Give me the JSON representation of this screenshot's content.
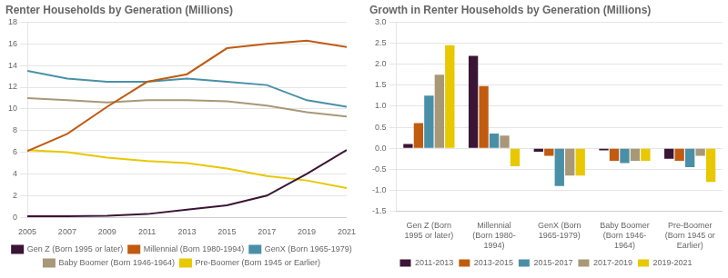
{
  "chart_data": [
    {
      "type": "line",
      "title": "Renter Households by Generation (Millions)",
      "x": [
        2005,
        2007,
        2009,
        2011,
        2013,
        2015,
        2017,
        2019,
        2021
      ],
      "series": [
        {
          "name": "Gen Z (Born 1995 or later)",
          "color": "#3b1535",
          "values": [
            0.1,
            0.1,
            0.15,
            0.3,
            0.7,
            1.1,
            2.0,
            4.0,
            6.2
          ]
        },
        {
          "name": "Millennial (Born 1980-1994)",
          "color": "#c05b10",
          "values": [
            6.1,
            7.7,
            10.2,
            12.5,
            13.2,
            15.6,
            16.0,
            16.3,
            15.7
          ]
        },
        {
          "name": "GenX (Born 1965-1979)",
          "color": "#4a8fa8",
          "values": [
            13.5,
            12.8,
            12.5,
            12.5,
            12.8,
            12.5,
            12.2,
            10.8,
            10.2
          ]
        },
        {
          "name": "Baby Boomer (Born 1946-1964)",
          "color": "#a89878",
          "values": [
            11.0,
            10.8,
            10.6,
            10.8,
            10.8,
            10.7,
            10.3,
            9.7,
            9.3
          ]
        },
        {
          "name": "Pre-Boomer (Born 1945 or Earlier)",
          "color": "#e8c800",
          "values": [
            6.2,
            6.0,
            5.5,
            5.2,
            5.0,
            4.5,
            3.8,
            3.4,
            2.7
          ]
        }
      ],
      "xlim": [
        2005,
        2021
      ],
      "xticks": [
        2005,
        2007,
        2009,
        2011,
        2013,
        2015,
        2017,
        2019,
        2021
      ],
      "ylim": [
        0,
        18
      ],
      "yticks": [
        0,
        2,
        4,
        6,
        8,
        10,
        12,
        14,
        16,
        18
      ],
      "grid": true,
      "legend": "bottom"
    },
    {
      "type": "bar",
      "title": "Growth in Renter Households by Generation (Millions)",
      "categories": [
        "Gen Z (Born\n1995 or later)",
        "Millennial\n(Born 1980-\n1994)",
        "GenX (Born\n1965-1979)",
        "Baby Boomer\n(Born 1946-\n1964)",
        "Pre-Boomer\n(Born 1945 or\nEarlier)"
      ],
      "series": [
        {
          "name": "2011-2013",
          "color": "#3b1535",
          "values": [
            0.1,
            2.2,
            -0.08,
            -0.05,
            -0.25
          ]
        },
        {
          "name": "2013-2015",
          "color": "#c05b10",
          "values": [
            0.6,
            1.48,
            -0.18,
            -0.3,
            -0.3
          ]
        },
        {
          "name": "2015-2017",
          "color": "#4a8fa8",
          "values": [
            1.25,
            0.35,
            -0.9,
            -0.35,
            -0.45
          ]
        },
        {
          "name": "2017-2019",
          "color": "#a89878",
          "values": [
            1.75,
            0.3,
            -0.65,
            -0.3,
            -0.18
          ]
        },
        {
          "name": "2019-2021",
          "color": "#e8c800",
          "values": [
            2.45,
            -0.43,
            -0.65,
            -0.3,
            -0.8
          ]
        }
      ],
      "ylim": [
        -1.5,
        3.0
      ],
      "yticks": [
        -1.5,
        {
          "value": -1.0,
          "label": "-1.0"
        },
        -0.5,
        {
          "value": 0.0,
          "label": "0.0"
        },
        0.5,
        {
          "value": 1.0,
          "label": "1.0"
        },
        1.5,
        {
          "value": 2.0,
          "label": "2.0"
        },
        2.5,
        {
          "value": 3.0,
          "label": "3.0"
        }
      ],
      "grid": true,
      "legend": "bottom"
    }
  ]
}
